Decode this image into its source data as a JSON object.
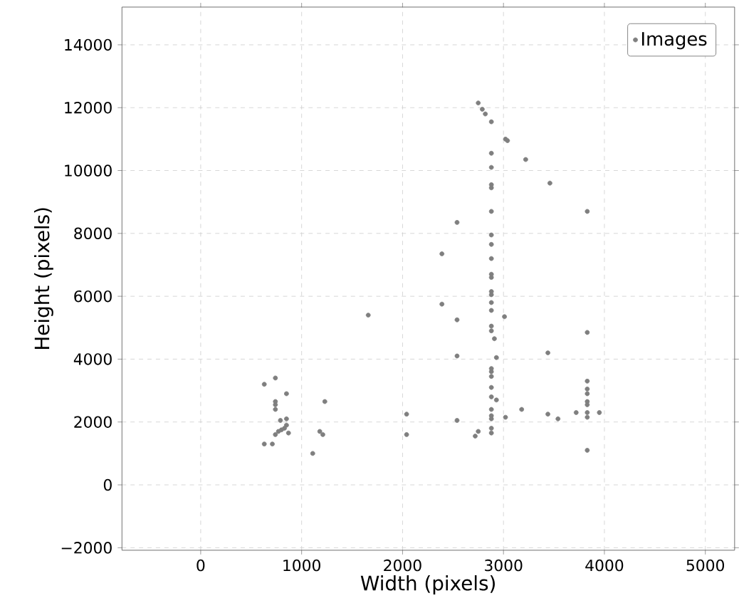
{
  "chart_data": {
    "type": "scatter",
    "xlabel": "Width (pixels)",
    "ylabel": "Height (pixels)",
    "xlim": [
      -780,
      5290
    ],
    "ylim": [
      -2080,
      15200
    ],
    "xticks": [
      0,
      1000,
      2000,
      3000,
      4000,
      5000
    ],
    "yticks": [
      {
        "value": -2000,
        "label": "−2000"
      },
      0,
      2000,
      4000,
      6000,
      8000,
      10000,
      12000,
      14000
    ],
    "grid": true,
    "legend": "top right",
    "series": [
      {
        "name": "Images",
        "color": "#7f7f7f",
        "x": [
          630,
          740,
          740,
          740,
          740,
          850,
          850,
          1230,
          1210,
          1180,
          1110,
          630,
          710,
          870,
          740,
          770,
          800,
          830,
          850,
          790,
          1660,
          2040,
          2040,
          2390,
          2390,
          2540,
          2540,
          2540,
          2540,
          2720,
          2750,
          2750,
          2790,
          2820,
          2880,
          2880,
          2880,
          2880,
          2880,
          2880,
          2880,
          2880,
          2880,
          2880,
          2880,
          2880,
          2880,
          2880,
          2880,
          2880,
          2880,
          2880,
          2880,
          2880,
          2880,
          2880,
          2880,
          2880,
          2880,
          2880,
          2880,
          3020,
          3040,
          3220,
          3460,
          3830,
          3010,
          2910,
          2930,
          2930,
          3020,
          3180,
          3440,
          3440,
          3540,
          3720,
          3830,
          3830,
          3830,
          3830,
          3830,
          3830,
          3830,
          3830,
          3830,
          3950
        ],
        "values": [
          3200,
          3400,
          2650,
          2550,
          2400,
          2900,
          2100,
          2650,
          1600,
          1700,
          1000,
          1300,
          1300,
          1650,
          1600,
          1700,
          1750,
          1800,
          1900,
          2050,
          5400,
          2250,
          1600,
          7350,
          5750,
          8350,
          5250,
          4100,
          2050,
          1550,
          1700,
          12150,
          11950,
          11800,
          11550,
          10550,
          10100,
          9550,
          9450,
          8700,
          7950,
          7650,
          7200,
          6700,
          6600,
          6150,
          6050,
          5800,
          5550,
          5050,
          4900,
          3700,
          3600,
          3450,
          3100,
          2800,
          2400,
          2200,
          2100,
          1800,
          1650,
          11000,
          10950,
          10350,
          9600,
          8700,
          5350,
          4650,
          4050,
          2700,
          2150,
          2400,
          4200,
          2250,
          2100,
          2300,
          4850,
          3300,
          3050,
          2900,
          2650,
          2550,
          2300,
          2150,
          1100,
          2300
        ]
      }
    ]
  }
}
